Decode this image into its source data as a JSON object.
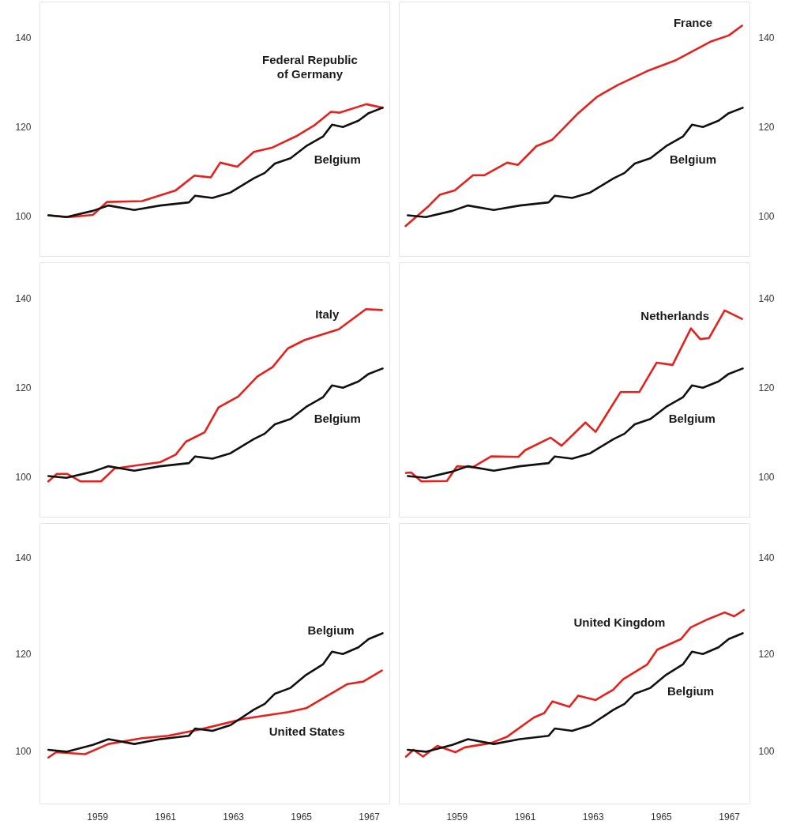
{
  "chart_data": [
    {
      "type": "line",
      "xlim": [
        1957.3,
        1967.6
      ],
      "xticks": [
        1959,
        1961,
        1963,
        1965,
        1967
      ],
      "ylim": [
        91,
        148
      ],
      "yticks": [
        100,
        120,
        140
      ],
      "tick_labels": "y",
      "series": [
        {
          "name": "Federal Republic\nof Germany",
          "color": "#e8201c",
          "x": [
            1957.55,
            1958.17,
            1958.86,
            1959.28,
            1960.31,
            1961.3,
            1961.85,
            1962.33,
            1962.61,
            1963.11,
            1963.6,
            1964.15,
            1964.84,
            1965.37,
            1965.87,
            1966.13,
            1966.91,
            1967.39
          ],
          "values": [
            100.2,
            99.8,
            100.3,
            103.2,
            103.4,
            105.8,
            109.1,
            108.7,
            112.0,
            111.1,
            114.4,
            115.4,
            117.9,
            120.3,
            123.4,
            123.2,
            125.1,
            124.3
          ]
        },
        {
          "name": "Belgium",
          "color": "#111111",
          "x": [
            1957.55,
            1958.08,
            1958.86,
            1959.32,
            1960.08,
            1960.84,
            1961.69,
            1961.87,
            1962.38,
            1962.91,
            1963.6,
            1963.92,
            1964.22,
            1964.68,
            1965.14,
            1965.64,
            1965.9,
            1966.22,
            1966.68,
            1966.98,
            1967.39
          ],
          "values": [
            100.2,
            99.8,
            101.2,
            102.4,
            101.4,
            102.4,
            103.1,
            104.6,
            104.1,
            105.3,
            108.5,
            109.7,
            111.8,
            113.0,
            115.7,
            117.9,
            120.5,
            120.0,
            121.4,
            123.1,
            124.3
          ]
        }
      ]
    },
    {
      "type": "line",
      "xlim": [
        1957.3,
        1967.6
      ],
      "xticks": [
        1959,
        1961,
        1963,
        1965,
        1967
      ],
      "ylim": [
        91,
        148
      ],
      "yticks": [
        100,
        120,
        140
      ],
      "tick_labels": "y",
      "series": [
        {
          "name": "France",
          "color": "#e8201c",
          "x": [
            1957.49,
            1958.14,
            1958.49,
            1958.93,
            1959.47,
            1959.81,
            1960.47,
            1960.79,
            1961.33,
            1961.79,
            1962.56,
            1963.12,
            1963.72,
            1964.58,
            1965.44,
            1966.44,
            1966.98,
            1967.37
          ],
          "values": [
            97.8,
            102.1,
            104.8,
            105.8,
            109.2,
            109.2,
            112.0,
            111.5,
            115.7,
            117.1,
            123.1,
            126.8,
            129.4,
            132.5,
            135.0,
            139.1,
            140.5,
            142.7
          ]
        },
        {
          "name": "Belgium",
          "color": "#111111",
          "x": [
            1957.55,
            1958.08,
            1958.86,
            1959.32,
            1960.08,
            1960.84,
            1961.69,
            1961.87,
            1962.38,
            1962.91,
            1963.6,
            1963.92,
            1964.22,
            1964.68,
            1965.14,
            1965.64,
            1965.9,
            1966.22,
            1966.68,
            1966.98,
            1967.39
          ],
          "values": [
            100.2,
            99.8,
            101.2,
            102.4,
            101.4,
            102.4,
            103.1,
            104.6,
            104.1,
            105.3,
            108.5,
            109.7,
            111.8,
            113.0,
            115.7,
            117.9,
            120.5,
            120.0,
            121.4,
            123.1,
            124.3
          ]
        }
      ]
    },
    {
      "type": "line",
      "xlim": [
        1957.3,
        1967.6
      ],
      "xticks": [
        1959,
        1961,
        1963,
        1965,
        1967
      ],
      "ylim": [
        91,
        148
      ],
      "yticks": [
        100,
        120,
        140
      ],
      "tick_labels": "y",
      "series": [
        {
          "name": "Italy",
          "color": "#e8201c",
          "x": [
            1957.55,
            1957.8,
            1958.1,
            1958.5,
            1959.1,
            1959.5,
            1960.15,
            1960.84,
            1961.3,
            1961.6,
            1962.15,
            1962.56,
            1963.14,
            1963.7,
            1964.15,
            1964.6,
            1965.1,
            1966.1,
            1966.9,
            1967.37
          ],
          "values": [
            99.0,
            100.7,
            100.7,
            99.0,
            99.0,
            101.9,
            102.6,
            103.3,
            105.0,
            107.9,
            110.0,
            115.6,
            118.0,
            122.5,
            124.6,
            128.8,
            130.7,
            133.1,
            137.6,
            137.4
          ]
        },
        {
          "name": "Belgium",
          "color": "#111111",
          "x": [
            1957.55,
            1958.08,
            1958.86,
            1959.32,
            1960.08,
            1960.84,
            1961.69,
            1961.87,
            1962.38,
            1962.91,
            1963.6,
            1963.92,
            1964.22,
            1964.68,
            1965.14,
            1965.64,
            1965.9,
            1966.22,
            1966.68,
            1966.98,
            1967.39
          ],
          "values": [
            100.2,
            99.8,
            101.2,
            102.4,
            101.4,
            102.4,
            103.1,
            104.6,
            104.1,
            105.3,
            108.5,
            109.7,
            111.8,
            113.0,
            115.7,
            117.9,
            120.5,
            120.0,
            121.4,
            123.1,
            124.3
          ]
        }
      ]
    },
    {
      "type": "line",
      "xlim": [
        1957.3,
        1967.6
      ],
      "xticks": [
        1959,
        1961,
        1963,
        1965,
        1967
      ],
      "ylim": [
        91,
        148
      ],
      "yticks": [
        100,
        120,
        140
      ],
      "tick_labels": "y",
      "series": [
        {
          "name": "Netherlands",
          "color": "#e8201c",
          "x": [
            1957.5,
            1957.65,
            1957.95,
            1958.7,
            1959.0,
            1959.47,
            1960.0,
            1960.8,
            1961.0,
            1961.75,
            1962.07,
            1962.77,
            1963.07,
            1963.8,
            1964.35,
            1964.86,
            1965.33,
            1965.87,
            1966.14,
            1966.4,
            1966.86,
            1967.37
          ],
          "values": [
            100.9,
            101.0,
            99.0,
            99.1,
            102.4,
            102.2,
            104.6,
            104.5,
            106.0,
            108.8,
            107.0,
            112.2,
            110.1,
            119.0,
            119.0,
            125.6,
            125.1,
            133.3,
            130.9,
            131.1,
            137.3,
            135.4
          ]
        },
        {
          "name": "Belgium",
          "color": "#111111",
          "x": [
            1957.55,
            1958.08,
            1958.86,
            1959.32,
            1960.08,
            1960.84,
            1961.69,
            1961.87,
            1962.38,
            1962.91,
            1963.6,
            1963.92,
            1964.22,
            1964.68,
            1965.14,
            1965.64,
            1965.9,
            1966.22,
            1966.68,
            1966.98,
            1967.39
          ],
          "values": [
            100.2,
            99.8,
            101.2,
            102.4,
            101.4,
            102.4,
            103.1,
            104.6,
            104.1,
            105.3,
            108.5,
            109.7,
            111.8,
            113.0,
            115.7,
            117.9,
            120.5,
            120.0,
            121.4,
            123.1,
            124.3
          ]
        }
      ]
    },
    {
      "type": "line",
      "xlim": [
        1957.3,
        1967.6
      ],
      "xticks": [
        1959,
        1961,
        1963,
        1965,
        1967
      ],
      "ylim": [
        89,
        147
      ],
      "yticks": [
        100,
        120,
        140
      ],
      "series": [
        {
          "name": "United States",
          "color": "#e8201c",
          "x": [
            1957.55,
            1957.78,
            1958.63,
            1959.32,
            1960.31,
            1961.07,
            1962.08,
            1963.3,
            1964.61,
            1965.14,
            1966.36,
            1966.82,
            1967.37
          ],
          "values": [
            98.6,
            99.7,
            99.3,
            101.4,
            102.6,
            103.1,
            104.5,
            106.6,
            108.0,
            108.8,
            113.8,
            114.3,
            116.6
          ]
        },
        {
          "name": "Belgium",
          "color": "#111111",
          "x": [
            1957.55,
            1958.08,
            1958.86,
            1959.32,
            1960.08,
            1960.84,
            1961.69,
            1961.87,
            1962.38,
            1962.91,
            1963.6,
            1963.92,
            1964.22,
            1964.68,
            1965.14,
            1965.64,
            1965.9,
            1966.22,
            1966.68,
            1966.98,
            1967.39
          ],
          "values": [
            100.2,
            99.8,
            101.2,
            102.4,
            101.4,
            102.4,
            103.1,
            104.6,
            104.1,
            105.3,
            108.5,
            109.7,
            111.8,
            113.0,
            115.7,
            117.9,
            120.5,
            120.0,
            121.4,
            123.1,
            124.3
          ]
        }
      ]
    },
    {
      "type": "line",
      "xlim": [
        1957.3,
        1967.6
      ],
      "xticks": [
        1959,
        1961,
        1963,
        1965,
        1967
      ],
      "ylim": [
        89,
        147
      ],
      "yticks": [
        100,
        120,
        140
      ],
      "series": [
        {
          "name": "United Kingdom",
          "color": "#e8201c",
          "x": [
            1957.5,
            1957.72,
            1958.0,
            1958.42,
            1958.95,
            1959.23,
            1960.0,
            1960.47,
            1961.26,
            1961.56,
            1961.8,
            1962.3,
            1962.56,
            1963.07,
            1963.58,
            1963.88,
            1964.58,
            1964.88,
            1965.58,
            1965.86,
            1966.37,
            1966.86,
            1967.14,
            1967.42
          ],
          "values": [
            98.8,
            100.2,
            98.8,
            101.0,
            99.7,
            100.7,
            101.6,
            102.9,
            106.9,
            107.8,
            110.2,
            109.1,
            111.4,
            110.5,
            112.6,
            114.8,
            117.8,
            120.9,
            123.1,
            125.5,
            127.2,
            128.6,
            127.8,
            129.1
          ]
        },
        {
          "name": "Belgium",
          "color": "#111111",
          "x": [
            1957.55,
            1958.08,
            1958.86,
            1959.32,
            1960.08,
            1960.84,
            1961.69,
            1961.87,
            1962.38,
            1962.91,
            1963.6,
            1963.92,
            1964.22,
            1964.68,
            1965.14,
            1965.64,
            1965.9,
            1966.22,
            1966.68,
            1966.98,
            1967.39
          ],
          "values": [
            100.2,
            99.8,
            101.2,
            102.4,
            101.4,
            102.4,
            103.1,
            104.6,
            104.1,
            105.3,
            108.5,
            109.7,
            111.8,
            113.0,
            115.7,
            117.9,
            120.5,
            120.0,
            121.4,
            123.1,
            124.3
          ]
        }
      ]
    }
  ]
}
